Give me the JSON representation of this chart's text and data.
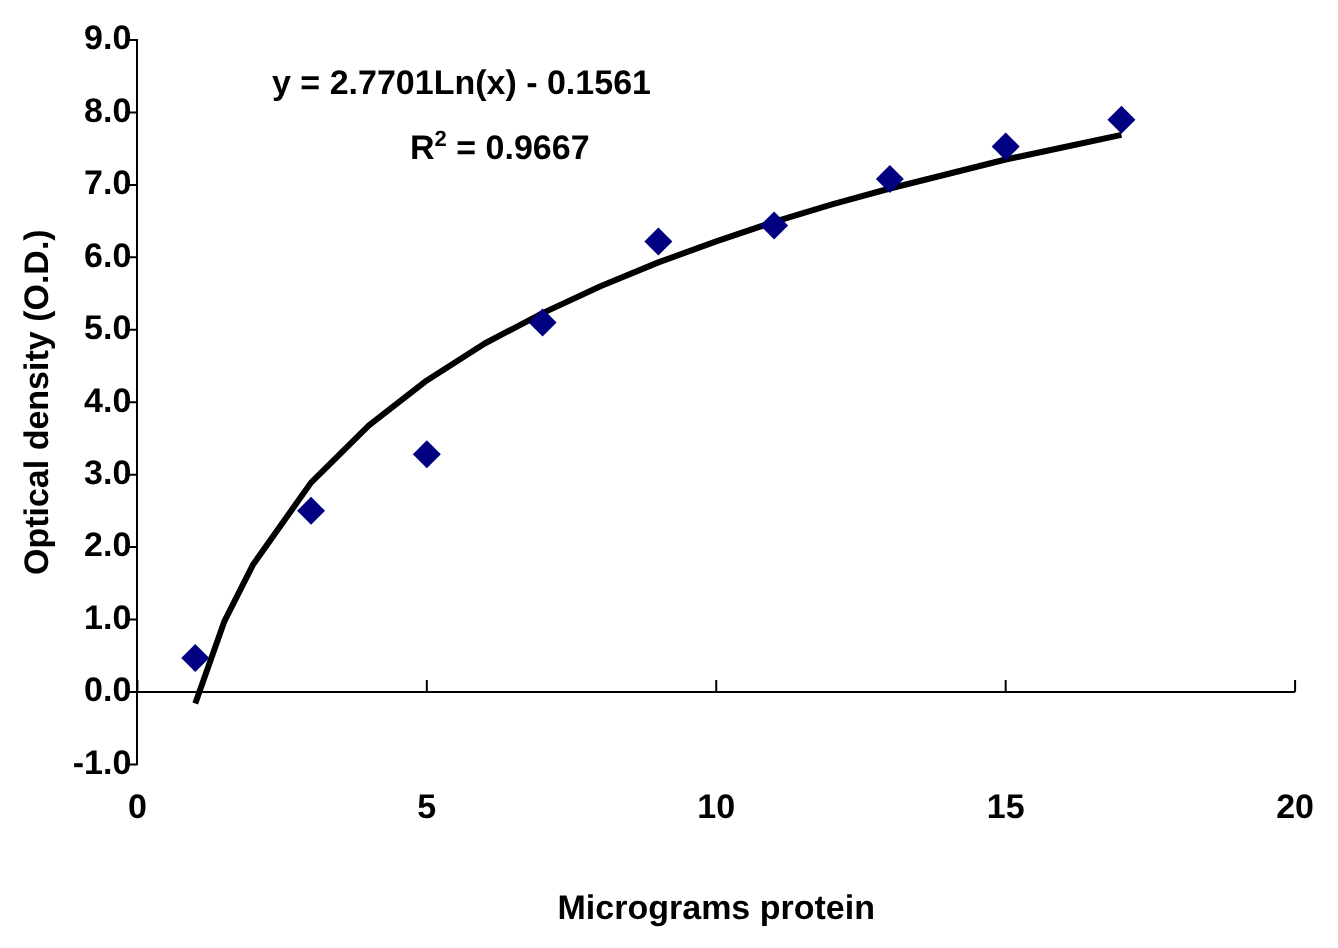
{
  "chart_data": {
    "type": "scatter",
    "xlabel": "Micrograms protein",
    "ylabel": "Optical density (O.D.)",
    "x": [
      1,
      3,
      5,
      7,
      9,
      11,
      13,
      15,
      17
    ],
    "series": [
      {
        "type": "scatter",
        "color": "#000080",
        "marker": "diamond",
        "values": [
          0.47,
          2.5,
          3.28,
          5.1,
          6.22,
          6.44,
          7.08,
          7.53,
          7.9
        ]
      },
      {
        "type": "line",
        "color": "#000000",
        "marker": "none",
        "line_style": "solid",
        "x": [
          1,
          1.5,
          2,
          3,
          4,
          5,
          6,
          7,
          8,
          9,
          10,
          11,
          12,
          13,
          14,
          15,
          16,
          17
        ],
        "values": [
          -0.16,
          0.97,
          1.76,
          2.89,
          3.68,
          4.3,
          4.81,
          5.23,
          5.6,
          5.93,
          6.22,
          6.49,
          6.73,
          6.95,
          7.15,
          7.35,
          7.52,
          7.69
        ]
      }
    ],
    "xlim": [
      0,
      20
    ],
    "xticks": [
      0,
      5,
      10,
      15,
      20
    ],
    "ylim": [
      -1,
      9
    ],
    "yticks": [
      {
        "value": -1,
        "label": "-1.0"
      },
      {
        "value": 0,
        "label": "0.0"
      },
      {
        "value": 1,
        "label": "1.0"
      },
      {
        "value": 2,
        "label": "2.0"
      },
      {
        "value": 3,
        "label": "3.0"
      },
      {
        "value": 4,
        "label": "4.0"
      },
      {
        "value": 5,
        "label": "5.0"
      },
      {
        "value": 6,
        "label": "6.0"
      },
      {
        "value": 7,
        "label": "7.0"
      },
      {
        "value": 8,
        "label": "8.0"
      },
      {
        "value": 9,
        "label": "9.0"
      }
    ],
    "grid": false,
    "legend": false,
    "ref_lines": [
      {
        "axis": "y",
        "value": 0,
        "color": "#000000"
      }
    ],
    "annotations": [
      "y = 2.7701Ln(x) - 0.1561",
      "R$^{2}$ = 0.9667"
    ]
  }
}
